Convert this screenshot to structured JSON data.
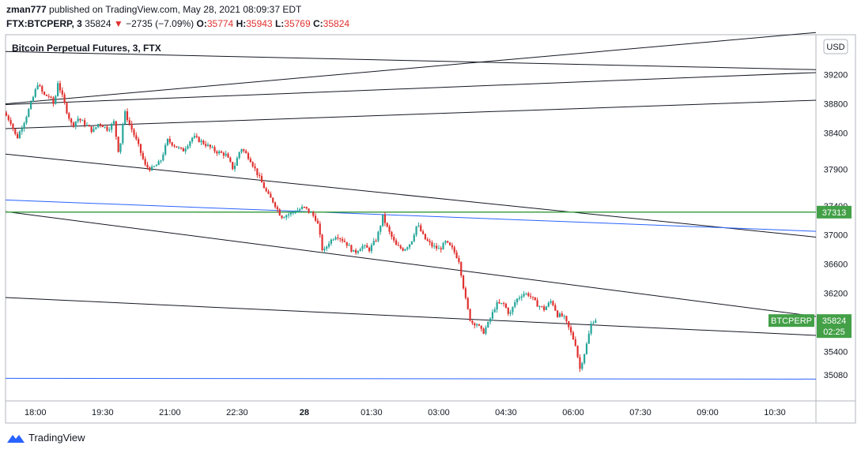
{
  "header": {
    "author": "zman777",
    "published_text": "published on TradingView.com, May 28, 2021 08:09:37 EDT",
    "symbol": "FTX:BTCPERP, 3",
    "last": "35824",
    "change_arrow": "▼",
    "change": "−2735 (−7.09%)",
    "o_label": "O:",
    "o_value": "35774",
    "h_label": "H:",
    "h_value": "35943",
    "l_label": "L:",
    "l_value": "35769",
    "c_label": "C:",
    "c_value": "35824"
  },
  "footer": {
    "brand": "TradingView"
  },
  "colors": {
    "up": "#26a69a",
    "down": "#e0312f",
    "green_line": "#43a047",
    "blue_line": "#2962ff",
    "trend_line": "#131722",
    "last_price_bg": "#43a047"
  },
  "chart_data": {
    "type": "candlestick",
    "title": "Bitcoin Perpetual Futures, 3, FTX",
    "currency_label": "USD",
    "ylim": [
      34720,
      39750
    ],
    "y_ticks": [
      39200,
      38800,
      38400,
      37900,
      37400,
      37000,
      36600,
      36200,
      35400,
      35080
    ],
    "x_ticks": [
      {
        "label": "18:00",
        "t": 0
      },
      {
        "label": "19:30",
        "t": 90
      },
      {
        "label": "21:00",
        "t": 180
      },
      {
        "label": "22:30",
        "t": 270
      },
      {
        "label": "28",
        "t": 360
      },
      {
        "label": "01:30",
        "t": 450
      },
      {
        "label": "03:00",
        "t": 540
      },
      {
        "label": "04:30",
        "t": 630
      },
      {
        "label": "06:00",
        "t": 720
      },
      {
        "label": "07:30",
        "t": 810
      },
      {
        "label": "09:00",
        "t": 900
      },
      {
        "label": "10:30",
        "t": 990
      }
    ],
    "x_range_minutes": [
      -40,
      1045
    ],
    "horizontal_levels": [
      {
        "price": 37313,
        "label": "37313",
        "kind": "green"
      }
    ],
    "last_price": {
      "symbol": "BTCPERP",
      "price": 35824,
      "label": "35824",
      "countdown": "02:25"
    },
    "path_keypoints": [
      {
        "t": -39,
        "p": 38680
      },
      {
        "t": -30,
        "p": 38550
      },
      {
        "t": -22,
        "p": 38320
      },
      {
        "t": -12,
        "p": 38560
      },
      {
        "t": -3,
        "p": 38800
      },
      {
        "t": 6,
        "p": 39080
      },
      {
        "t": 14,
        "p": 38920
      },
      {
        "t": 22,
        "p": 38900
      },
      {
        "t": 28,
        "p": 38780
      },
      {
        "t": 33,
        "p": 39100
      },
      {
        "t": 45,
        "p": 38700
      },
      {
        "t": 52,
        "p": 38500
      },
      {
        "t": 60,
        "p": 38600
      },
      {
        "t": 70,
        "p": 38520
      },
      {
        "t": 80,
        "p": 38420
      },
      {
        "t": 88,
        "p": 38540
      },
      {
        "t": 100,
        "p": 38450
      },
      {
        "t": 108,
        "p": 38550
      },
      {
        "t": 115,
        "p": 38100
      },
      {
        "t": 122,
        "p": 38700
      },
      {
        "t": 132,
        "p": 38450
      },
      {
        "t": 140,
        "p": 38250
      },
      {
        "t": 150,
        "p": 37950
      },
      {
        "t": 158,
        "p": 37900
      },
      {
        "t": 170,
        "p": 38000
      },
      {
        "t": 180,
        "p": 38300
      },
      {
        "t": 200,
        "p": 38150
      },
      {
        "t": 214,
        "p": 38350
      },
      {
        "t": 230,
        "p": 38250
      },
      {
        "t": 244,
        "p": 38150
      },
      {
        "t": 258,
        "p": 38100
      },
      {
        "t": 268,
        "p": 37900
      },
      {
        "t": 278,
        "p": 38200
      },
      {
        "t": 290,
        "p": 38050
      },
      {
        "t": 302,
        "p": 37800
      },
      {
        "t": 314,
        "p": 37550
      },
      {
        "t": 322,
        "p": 37450
      },
      {
        "t": 332,
        "p": 37250
      },
      {
        "t": 346,
        "p": 37300
      },
      {
        "t": 362,
        "p": 37380
      },
      {
        "t": 372,
        "p": 37300
      },
      {
        "t": 380,
        "p": 37200
      },
      {
        "t": 388,
        "p": 36750
      },
      {
        "t": 396,
        "p": 36900
      },
      {
        "t": 406,
        "p": 37000
      },
      {
        "t": 418,
        "p": 36900
      },
      {
        "t": 430,
        "p": 36750
      },
      {
        "t": 440,
        "p": 36850
      },
      {
        "t": 450,
        "p": 36800
      },
      {
        "t": 460,
        "p": 36950
      },
      {
        "t": 468,
        "p": 37250
      },
      {
        "t": 476,
        "p": 37050
      },
      {
        "t": 486,
        "p": 36850
      },
      {
        "t": 496,
        "p": 36800
      },
      {
        "t": 506,
        "p": 36900
      },
      {
        "t": 514,
        "p": 37150
      },
      {
        "t": 524,
        "p": 36950
      },
      {
        "t": 534,
        "p": 36850
      },
      {
        "t": 544,
        "p": 36800
      },
      {
        "t": 552,
        "p": 36900
      },
      {
        "t": 562,
        "p": 36800
      },
      {
        "t": 570,
        "p": 36650
      },
      {
        "t": 580,
        "p": 36050
      },
      {
        "t": 586,
        "p": 35800
      },
      {
        "t": 594,
        "p": 35780
      },
      {
        "t": 602,
        "p": 35650
      },
      {
        "t": 610,
        "p": 35800
      },
      {
        "t": 620,
        "p": 36050
      },
      {
        "t": 630,
        "p": 36050
      },
      {
        "t": 638,
        "p": 35900
      },
      {
        "t": 646,
        "p": 36100
      },
      {
        "t": 656,
        "p": 36200
      },
      {
        "t": 664,
        "p": 36180
      },
      {
        "t": 674,
        "p": 36050
      },
      {
        "t": 684,
        "p": 35980
      },
      {
        "t": 694,
        "p": 36100
      },
      {
        "t": 702,
        "p": 35900
      },
      {
        "t": 710,
        "p": 35880
      },
      {
        "t": 718,
        "p": 35700
      },
      {
        "t": 726,
        "p": 35500
      },
      {
        "t": 732,
        "p": 35160
      },
      {
        "t": 740,
        "p": 35450
      },
      {
        "t": 748,
        "p": 35820
      },
      {
        "t": 752,
        "p": 35824
      }
    ],
    "trend_lines": [
      {
        "kind": "black",
        "t1": -40,
        "p1": 39520,
        "t2": 1045,
        "p2": 39270
      },
      {
        "kind": "black",
        "t1": -40,
        "p1": 38800,
        "t2": 1045,
        "p2": 39780
      },
      {
        "kind": "black",
        "t1": -40,
        "p1": 38790,
        "t2": 1045,
        "p2": 39230
      },
      {
        "kind": "black",
        "t1": -40,
        "p1": 38460,
        "t2": 1045,
        "p2": 38850
      },
      {
        "kind": "black",
        "t1": -40,
        "p1": 38110,
        "t2": 1045,
        "p2": 36970
      },
      {
        "kind": "black",
        "t1": -40,
        "p1": 37320,
        "t2": 1045,
        "p2": 35880
      },
      {
        "kind": "black",
        "t1": -40,
        "p1": 36140,
        "t2": 1045,
        "p2": 35620
      },
      {
        "kind": "blue",
        "t1": -40,
        "p1": 37480,
        "t2": 1045,
        "p2": 37050
      },
      {
        "kind": "blue",
        "t1": -40,
        "p1": 35030,
        "t2": 1045,
        "p2": 35020
      }
    ]
  }
}
